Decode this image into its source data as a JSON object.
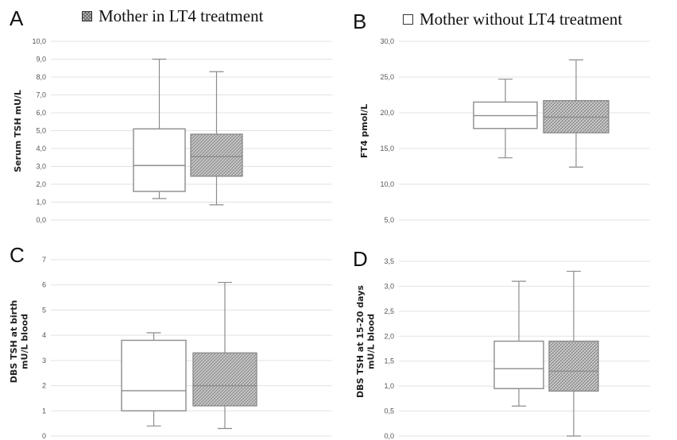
{
  "legend": {
    "treated_label": "Mother in LT4 treatment",
    "untreated_label": "Mother without LT4 treatment"
  },
  "colors": {
    "treated_fill": "#cfcfcf",
    "untreated_fill": "#ffffff",
    "box_stroke": "#8c8c8c",
    "grid": "#e3e3e3",
    "tick_text": "#555555"
  },
  "chart_data": [
    {
      "panel": "A",
      "type": "boxplot",
      "ylabel": [
        "Serum TSH mU/L"
      ],
      "ylim": [
        0,
        10
      ],
      "yticks": [
        "0,0",
        "1,0",
        "2,0",
        "3,0",
        "4,0",
        "5,0",
        "6,0",
        "7,0",
        "8,0",
        "9,0",
        "10,0"
      ],
      "grid": true,
      "series": [
        {
          "group": "untreated",
          "min": 1.2,
          "q1": 1.6,
          "median": 3.05,
          "q3": 5.1,
          "max": 9.0
        },
        {
          "group": "treated",
          "min": 0.85,
          "q1": 2.45,
          "median": 3.55,
          "q3": 4.8,
          "max": 8.3
        }
      ]
    },
    {
      "panel": "B",
      "type": "boxplot",
      "ylabel": [
        "FT4 pmol/L"
      ],
      "ylim": [
        5,
        30
      ],
      "yticks": [
        "5,0",
        "10,0",
        "15,0",
        "20,0",
        "25,0",
        "30,0"
      ],
      "grid": true,
      "series": [
        {
          "group": "untreated",
          "min": 13.7,
          "q1": 17.8,
          "median": 19.6,
          "q3": 21.5,
          "max": 24.7
        },
        {
          "group": "treated",
          "min": 12.4,
          "q1": 17.2,
          "median": 19.4,
          "q3": 21.7,
          "max": 27.4
        }
      ]
    },
    {
      "panel": "C",
      "type": "boxplot",
      "ylabel": [
        "DBS TSH at birth",
        "mU/L blood"
      ],
      "ylim": [
        0,
        7
      ],
      "yticks": [
        "0",
        "1",
        "2",
        "3",
        "4",
        "5",
        "6",
        "7"
      ],
      "grid": true,
      "series": [
        {
          "group": "untreated",
          "min": 0.4,
          "q1": 1.0,
          "median": 1.8,
          "q3": 3.8,
          "max": 4.1
        },
        {
          "group": "treated",
          "min": 0.3,
          "q1": 1.2,
          "median": 2.0,
          "q3": 3.3,
          "max": 6.1
        }
      ]
    },
    {
      "panel": "D",
      "type": "boxplot",
      "ylabel": [
        "DBS TSH at 15-20 days",
        "mU/L blood"
      ],
      "ylim": [
        0,
        3.5
      ],
      "yticks": [
        "0,0",
        "0,5",
        "1,0",
        "1,5",
        "2,0",
        "2,5",
        "3,0",
        "3,5"
      ],
      "grid": true,
      "series": [
        {
          "group": "untreated",
          "min": 0.6,
          "q1": 0.95,
          "median": 1.35,
          "q3": 1.9,
          "max": 3.1
        },
        {
          "group": "treated",
          "min": 0.0,
          "q1": 0.9,
          "median": 1.3,
          "q3": 1.9,
          "max": 3.3
        }
      ]
    }
  ]
}
